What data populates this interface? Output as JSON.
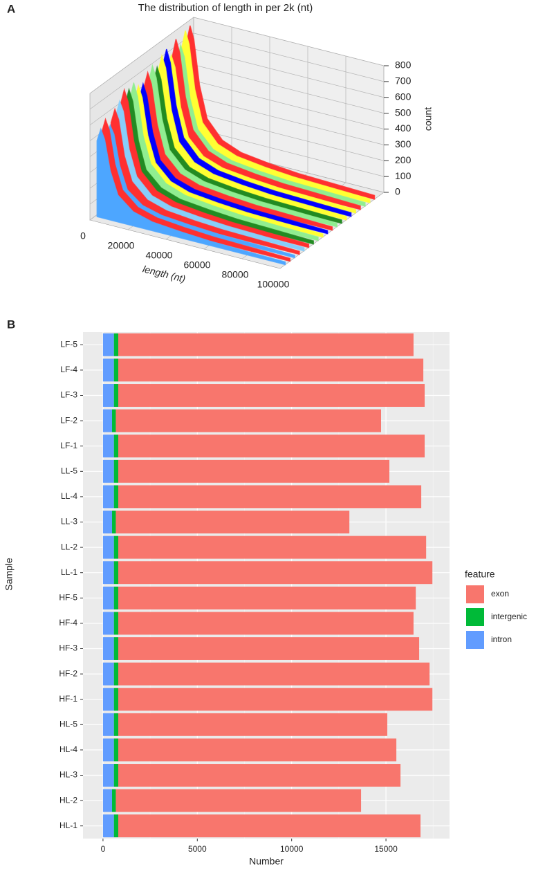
{
  "chart_data": [
    {
      "type": "bar3d",
      "panel_label": "A",
      "title": "The distribution of length in per 2k (nt)",
      "x_label": "length (nt)",
      "y_label": "count",
      "xlim": [
        0,
        100000
      ],
      "xticks": [
        0,
        20000,
        40000,
        60000,
        80000,
        100000
      ],
      "ylim": [
        0,
        800
      ],
      "yticks": [
        0,
        100,
        200,
        300,
        400,
        500,
        600,
        700,
        800
      ],
      "x": [
        1000,
        3000,
        5000,
        8000,
        12000,
        20000,
        30000,
        45000,
        60000,
        80000,
        100000
      ],
      "series": [
        {
          "color": "#4da6ff",
          "values": [
            480,
            560,
            500,
            310,
            170,
            90,
            56,
            40,
            28,
            22,
            17
          ]
        },
        {
          "color": "#ff3030",
          "values": [
            510,
            600,
            540,
            330,
            180,
            96,
            60,
            42,
            30,
            24,
            18
          ]
        },
        {
          "color": "#4da6ff",
          "values": [
            460,
            540,
            490,
            300,
            160,
            86,
            54,
            38,
            27,
            22,
            16
          ]
        },
        {
          "color": "#ff3030",
          "values": [
            530,
            620,
            560,
            340,
            190,
            99,
            62,
            43,
            31,
            25,
            19
          ]
        },
        {
          "color": "#87cefa",
          "values": [
            550,
            650,
            590,
            360,
            200,
            104,
            65,
            46,
            33,
            26,
            20
          ]
        },
        {
          "color": "#ff3030",
          "values": [
            600,
            700,
            630,
            390,
            210,
            112,
            70,
            49,
            35,
            28,
            21
          ]
        },
        {
          "color": "#228b22",
          "values": [
            580,
            680,
            610,
            370,
            200,
            109,
            68,
            48,
            34,
            27,
            20
          ]
        },
        {
          "color": "#90ee90",
          "values": [
            590,
            700,
            620,
            380,
            215,
            115,
            72,
            50,
            36,
            28,
            22
          ]
        },
        {
          "color": "#ffff33",
          "values": [
            560,
            660,
            590,
            360,
            200,
            106,
            66,
            46,
            33,
            26,
            20
          ]
        },
        {
          "color": "#0000ff",
          "values": [
            550,
            650,
            580,
            360,
            195,
            104,
            65,
            45,
            32,
            26,
            19
          ]
        },
        {
          "color": "#ff3030",
          "values": [
            600,
            700,
            630,
            385,
            210,
            112,
            70,
            49,
            35,
            28,
            21
          ]
        },
        {
          "color": "#90ee90",
          "values": [
            610,
            720,
            650,
            400,
            215,
            115,
            72,
            50,
            36,
            29,
            22
          ]
        },
        {
          "color": "#228b22",
          "values": [
            590,
            690,
            620,
            380,
            207,
            110,
            69,
            48,
            35,
            28,
            21
          ]
        },
        {
          "color": "#ffff33",
          "values": [
            630,
            740,
            670,
            410,
            222,
            118,
            74,
            52,
            37,
            30,
            22
          ]
        },
        {
          "color": "#0000ff",
          "values": [
            650,
            760,
            680,
            420,
            228,
            122,
            76,
            53,
            38,
            30,
            23
          ]
        },
        {
          "color": "#ffff33",
          "values": [
            595,
            700,
            630,
            385,
            210,
            112,
            70,
            49,
            35,
            28,
            21
          ]
        },
        {
          "color": "#ff3030",
          "values": [
            660,
            780,
            700,
            430,
            234,
            125,
            78,
            55,
            39,
            31,
            23
          ]
        },
        {
          "color": "#90ee90",
          "values": [
            612,
            720,
            648,
            396,
            216,
            115,
            72,
            50,
            36,
            29,
            22
          ]
        },
        {
          "color": "#ffff33",
          "values": [
            670,
            790,
            710,
            435,
            237,
            126,
            79,
            55,
            40,
            32,
            24
          ]
        },
        {
          "color": "#ff3030",
          "values": [
            680,
            800,
            720,
            440,
            240,
            128,
            80,
            56,
            40,
            32,
            24
          ]
        }
      ]
    },
    {
      "type": "stacked_hbar",
      "panel_label": "B",
      "x_label": "Number",
      "y_label": "Sample",
      "legend_title": "feature",
      "grid": true,
      "categories": [
        "LF-5",
        "LF-4",
        "LF-3",
        "LF-2",
        "LF-1",
        "LL-5",
        "LL-4",
        "LL-3",
        "LL-2",
        "LL-1",
        "HF-5",
        "HF-4",
        "HF-3",
        "HF-2",
        "HF-1",
        "HL-5",
        "HL-4",
        "HL-3",
        "HL-2",
        "HL-1"
      ],
      "xlim": [
        -1060,
        18370
      ],
      "xticks": [
        0,
        5000,
        10000,
        15000
      ],
      "series": [
        {
          "name": "exon",
          "color": "#f8766d",
          "values": [
            15650,
            16170,
            16240,
            14060,
            16240,
            14370,
            16060,
            12380,
            16320,
            16650,
            15770,
            15650,
            15950,
            16500,
            16650,
            14260,
            14740,
            14960,
            13000,
            16020
          ]
        },
        {
          "name": "intergenic",
          "color": "#00ba38",
          "values": [
            230,
            230,
            230,
            200,
            230,
            230,
            230,
            200,
            230,
            230,
            230,
            230,
            230,
            230,
            230,
            230,
            230,
            230,
            200,
            230
          ]
        },
        {
          "name": "intron",
          "color": "#619cff",
          "values": [
            580,
            580,
            580,
            480,
            580,
            580,
            580,
            480,
            580,
            580,
            580,
            580,
            580,
            580,
            580,
            580,
            580,
            580,
            480,
            580
          ]
        }
      ]
    }
  ]
}
